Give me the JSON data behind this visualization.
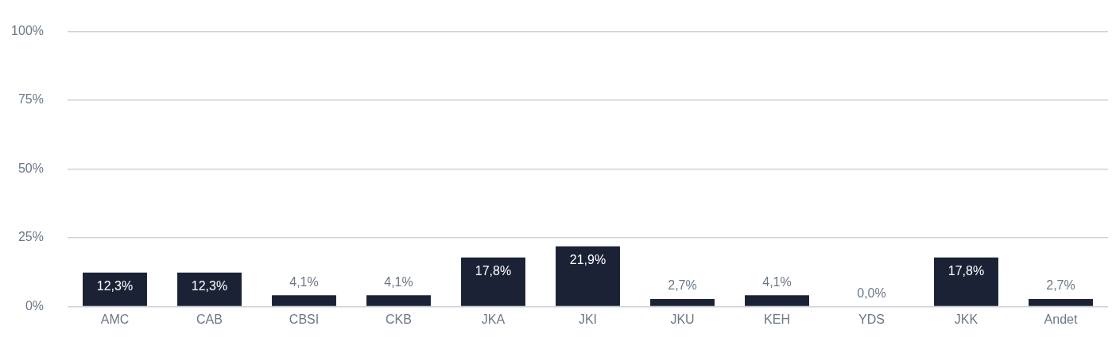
{
  "chart_data": {
    "type": "bar",
    "categories": [
      "AMC",
      "CAB",
      "CBSI",
      "CKB",
      "JKA",
      "JKI",
      "JKU",
      "KEH",
      "YDS",
      "JKK",
      "Andet"
    ],
    "values": [
      12.3,
      12.3,
      4.1,
      4.1,
      17.8,
      21.9,
      2.7,
      4.1,
      0.0,
      17.8,
      2.7
    ],
    "value_labels": [
      "12,3%",
      "12,3%",
      "4,1%",
      "4,1%",
      "17,8%",
      "21,9%",
      "2,7%",
      "4,1%",
      "0,0%",
      "17,8%",
      "2,7%"
    ],
    "color": "#1b2236",
    "ylim": [
      0,
      100
    ],
    "yticks": [
      {
        "value": 0,
        "label": "0%"
      },
      {
        "value": 25,
        "label": "25%"
      },
      {
        "value": 50,
        "label": "50%"
      },
      {
        "value": 75,
        "label": "75%"
      },
      {
        "value": 100,
        "label": "100%"
      }
    ],
    "grid": "y"
  }
}
